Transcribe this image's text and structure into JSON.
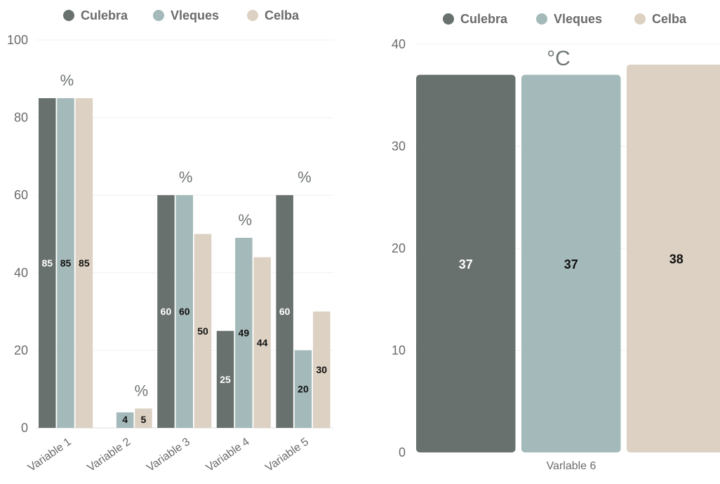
{
  "colors": {
    "Culebra": "#68716d",
    "Vieques": "#a4b9b9",
    "Celba": "#dcd1c2"
  },
  "legend": [
    "Culebra",
    "Vleques",
    "Celba"
  ],
  "chart_data": [
    {
      "type": "bar",
      "categories": [
        "Variable 1",
        "Variable 2",
        "Variable 3",
        "Variable 4",
        "Variable 5"
      ],
      "series": [
        {
          "name": "Culebra",
          "values": [
            85,
            0,
            60,
            25,
            60
          ]
        },
        {
          "name": "Vleques",
          "values": [
            85,
            4,
            60,
            49,
            20
          ]
        },
        {
          "name": "Celba",
          "values": [
            85,
            5,
            50,
            44,
            30
          ]
        }
      ],
      "data_labels": [
        [
          "85",
          "",
          "60",
          "25",
          "60"
        ],
        [
          "85",
          "4",
          "60",
          "49",
          "20"
        ],
        [
          "85",
          "5",
          "50",
          "44",
          "30"
        ]
      ],
      "unit_labels": [
        "%",
        "%",
        "%",
        "%",
        "%"
      ],
      "ylim": [
        0,
        100
      ],
      "yticks": [
        0,
        20,
        40,
        60,
        80,
        100
      ],
      "xlabel": "",
      "ylabel": "",
      "title": "",
      "legend_position": "top"
    },
    {
      "type": "bar",
      "categories": [
        "Varlable 6"
      ],
      "series": [
        {
          "name": "Culebra",
          "values": [
            37
          ]
        },
        {
          "name": "Vleques",
          "values": [
            37
          ]
        },
        {
          "name": "Celba",
          "values": [
            38
          ]
        }
      ],
      "data_labels": [
        [
          "37"
        ],
        [
          "37"
        ],
        [
          "38"
        ]
      ],
      "unit_labels": [
        "°C"
      ],
      "ylim": [
        0,
        40
      ],
      "yticks": [
        0,
        10,
        20,
        30,
        40
      ],
      "xlabel": "",
      "ylabel": "",
      "title": "",
      "legend_position": "top"
    }
  ]
}
